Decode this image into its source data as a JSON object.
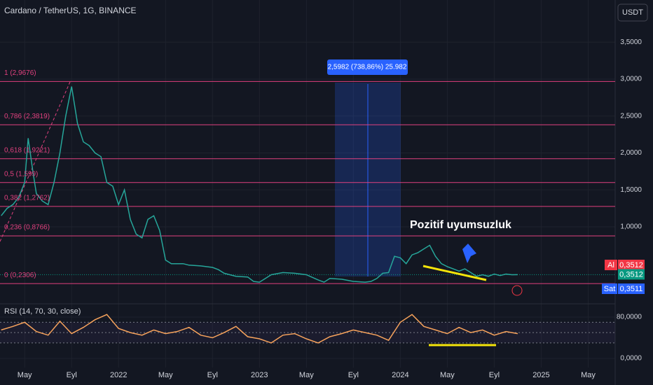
{
  "header": {
    "symbol": "Cardano / TetherUS, 1G, BINANCE",
    "currency": "USDT"
  },
  "chart_data": [
    {
      "type": "line",
      "annotation": "Pozitif uyumsuzluk",
      "x": [
        -2,
        -1.5,
        -1,
        -0.5,
        0,
        0.3,
        0.7,
        1,
        1.5,
        2,
        2.5,
        3,
        3.5,
        4,
        4.5,
        5,
        5.5,
        6,
        6.5,
        7,
        7.5,
        8,
        8.5,
        9,
        9.5,
        10,
        10.5,
        11,
        11.5,
        12,
        12.5,
        13,
        13.5,
        14,
        15,
        16,
        16.5,
        17,
        18,
        19,
        19.5,
        20,
        21,
        22,
        23,
        24,
        25,
        25.5,
        26,
        27,
        28,
        29,
        29.5,
        30,
        30.5,
        31,
        31.5,
        32,
        32.5,
        33,
        33.5,
        34,
        34.5,
        35,
        35.5,
        36,
        36.5,
        37,
        37.5,
        38,
        38.5,
        39,
        39.5,
        40,
        40.5,
        41,
        41.5,
        42
      ],
      "series": [
        {
          "color": "#26a69a",
          "values": [
            1.15,
            1.25,
            1.3,
            1.4,
            1.6,
            2.2,
            1.75,
            1.45,
            1.35,
            1.3,
            1.6,
            2.0,
            2.5,
            2.9,
            2.4,
            2.15,
            2.1,
            2.0,
            1.95,
            1.6,
            1.55,
            1.3,
            1.5,
            1.1,
            0.9,
            0.85,
            1.1,
            1.15,
            0.95,
            0.55,
            0.5,
            0.5,
            0.5,
            0.48,
            0.47,
            0.45,
            0.42,
            0.37,
            0.33,
            0.32,
            0.26,
            0.25,
            0.35,
            0.38,
            0.37,
            0.35,
            0.28,
            0.25,
            0.3,
            0.29,
            0.26,
            0.25,
            0.26,
            0.3,
            0.37,
            0.38,
            0.6,
            0.58,
            0.5,
            0.62,
            0.65,
            0.7,
            0.75,
            0.6,
            0.5,
            0.46,
            0.43,
            0.4,
            0.43,
            0.38,
            0.33,
            0.35,
            0.33,
            0.36,
            0.34,
            0.36,
            0.35,
            0.3512
          ]
        }
      ],
      "xlim": [
        -2.1,
        50.3
      ],
      "xticks": [
        {
          "value": 0,
          "label": "May"
        },
        {
          "value": 4,
          "label": "Eyl"
        },
        {
          "value": 8,
          "label": "2022"
        },
        {
          "value": 12,
          "label": "May"
        },
        {
          "value": 16,
          "label": "Eyl"
        },
        {
          "value": 20,
          "label": "2023"
        },
        {
          "value": 24,
          "label": "May"
        },
        {
          "value": 28,
          "label": "Eyl"
        },
        {
          "value": 32,
          "label": "2024"
        },
        {
          "value": 36,
          "label": "May"
        },
        {
          "value": 40,
          "label": "Eyl"
        },
        {
          "value": 44,
          "label": "2025"
        },
        {
          "value": 48,
          "label": "May"
        }
      ],
      "ylim": [
        -0.024,
        3.787
      ],
      "yticks": [
        {
          "value": 1,
          "label": "1,0000"
        },
        {
          "value": 1.5,
          "label": "1,5000"
        },
        {
          "value": 2,
          "label": "2,0000"
        },
        {
          "value": 2.5,
          "label": "2,5000"
        },
        {
          "value": 3,
          "label": "3,0000"
        },
        {
          "value": 3.5,
          "label": "3,5000"
        }
      ],
      "fib_levels": [
        {
          "value": 2.9676,
          "label": "1 (2,9676)"
        },
        {
          "value": 2.3819,
          "label": "0,786 (2,3819)"
        },
        {
          "value": 1.9221,
          "label": "0,618 (1,9221)"
        },
        {
          "value": 1.599,
          "label": "0,5 (1,599)"
        },
        {
          "value": 1.2762,
          "label": "0,382 (1,2762)"
        },
        {
          "value": 0.8766,
          "label": "0,236 (0,8766)"
        },
        {
          "value": 0.2306,
          "label": "0 (0,2306)"
        }
      ],
      "fib_color": "#e0407e",
      "measure": "2,5982 (738,86%) 25.982",
      "last_price": {
        "value": 0.3512,
        "label": "0,3512"
      },
      "buy": {
        "label": "Al",
        "price": "0,3512"
      },
      "sell": {
        "label": "Sat",
        "price": "0,3511"
      }
    },
    {
      "type": "line",
      "title": "RSI (14, 70, 30, close)",
      "x": [
        -2,
        -1,
        0,
        1,
        2,
        3,
        4,
        5,
        6,
        7,
        8,
        9,
        10,
        11,
        12,
        13,
        14,
        15,
        16,
        17,
        18,
        19,
        20,
        21,
        22,
        23,
        24,
        25,
        26,
        27,
        28,
        29,
        30,
        31,
        32,
        33,
        34,
        35,
        36,
        37,
        38,
        39,
        40,
        41,
        42
      ],
      "series": [
        {
          "color": "#f7a35c",
          "values": [
            55,
            62,
            70,
            52,
            45,
            72,
            48,
            60,
            75,
            85,
            58,
            50,
            45,
            55,
            48,
            52,
            60,
            45,
            40,
            50,
            62,
            42,
            38,
            30,
            45,
            48,
            38,
            30,
            42,
            48,
            55,
            50,
            45,
            35,
            70,
            85,
            62,
            55,
            48,
            60,
            50,
            55,
            45,
            52,
            48
          ]
        }
      ],
      "ylim": [
        -17.6,
        103
      ],
      "yticks": [
        {
          "value": 80,
          "label": "80,0000"
        },
        {
          "value": 0,
          "label": "0,0000"
        }
      ],
      "levels": [
        70,
        50,
        30
      ]
    }
  ]
}
